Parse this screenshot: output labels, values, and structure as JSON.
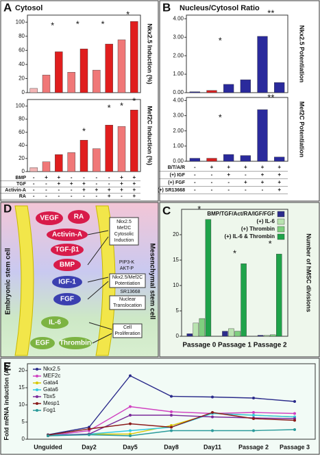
{
  "panels": [
    "A",
    "B",
    "C",
    "D",
    "E"
  ],
  "chart_data": [
    {
      "type": "bar",
      "title": "Cytosol",
      "y_label": "Nkx2.5 Induction (%)",
      "values": [
        6,
        25,
        58,
        29,
        62,
        32,
        69,
        75,
        101
      ],
      "colors": [
        "#f3b5b5",
        "#f07878",
        "#e01e1e",
        "#f07878",
        "#e01e1e",
        "#f07878",
        "#e01e1e",
        "#f07878",
        "#e01e1e"
      ],
      "ylim": [
        0,
        110
      ],
      "yticks": [
        0,
        20,
        40,
        60,
        80,
        100
      ],
      "annotations": [
        "*",
        "*",
        "*",
        "*"
      ]
    },
    {
      "type": "bar",
      "y_label": "Mef2C Induction (%)",
      "values": [
        6,
        15,
        26,
        29,
        48,
        35,
        71,
        69,
        94
      ],
      "colors": [
        "#f3b5b5",
        "#f07878",
        "#e01e1e",
        "#f07878",
        "#e01e1e",
        "#f07878",
        "#e01e1e",
        "#f07878",
        "#e01e1e"
      ],
      "ylim": [
        0,
        110
      ],
      "yticks": [
        0,
        20,
        40,
        60,
        80,
        100
      ],
      "annotations": [
        "*",
        "*",
        "*",
        "*"
      ],
      "conditions": [
        {
          "label": "BMP",
          "signs": [
            "-",
            "+",
            "+",
            "-",
            "-",
            "-",
            "-",
            "+",
            "+"
          ]
        },
        {
          "label": "TGF",
          "signs": [
            "-",
            "-",
            "+",
            "+",
            "+",
            "-",
            "-",
            "+",
            "+"
          ]
        },
        {
          "label": "Activin-A",
          "signs": [
            "-",
            "-",
            "-",
            "-",
            "+",
            "+",
            "+",
            "+",
            "+"
          ]
        },
        {
          "label": "RA",
          "signs": [
            "-",
            "-",
            "-",
            "-",
            "-",
            "-",
            "+",
            "-",
            "+"
          ]
        }
      ]
    },
    {
      "type": "bar",
      "title": "Nucleus/Cytosol Ratio",
      "y_label": "Nkx2.5 Potentiation",
      "values": [
        0.05,
        0.12,
        0.45,
        0.7,
        3.05,
        0.55
      ],
      "colors": [
        "#2a2a9c",
        "#d42020",
        "#2a2a9c",
        "#2a2a9c",
        "#2a2a9c",
        "#2a2a9c"
      ],
      "ylim": [
        0,
        4.2
      ],
      "yticks": [
        {
          "value": 0,
          "label": "0.00"
        },
        {
          "value": 1,
          "label": "1.00"
        },
        {
          "value": 2,
          "label": "2.00"
        },
        {
          "value": 3,
          "label": "3.00"
        },
        {
          "value": 4,
          "label": "4.00"
        }
      ],
      "annotations": [
        "*",
        "**"
      ]
    },
    {
      "type": "bar",
      "y_label": "Mef2C Potentiation",
      "values": [
        0.2,
        0.2,
        0.45,
        0.38,
        3.4,
        0.28
      ],
      "colors": [
        "#2a2a9c",
        "#d42020",
        "#2a2a9c",
        "#2a2a9c",
        "#2a2a9c",
        "#2a2a9c"
      ],
      "ylim": [
        0,
        4.2
      ],
      "yticks": [
        {
          "value": 0,
          "label": "0.00"
        },
        {
          "value": 1,
          "label": "1.00"
        },
        {
          "value": 2,
          "label": "2.00"
        },
        {
          "value": 3,
          "label": "3.00"
        },
        {
          "value": 4,
          "label": "4.00"
        }
      ],
      "annotations": [
        "*",
        "**"
      ],
      "conditions": [
        {
          "label": "B/T/A/R",
          "signs": [
            "-",
            "+",
            "+",
            "+",
            "+",
            "+"
          ]
        },
        {
          "label": "(+) IGF",
          "signs": [
            "-",
            "-",
            "+",
            "-",
            "+",
            "+"
          ]
        },
        {
          "label": "(+) FGF",
          "signs": [
            "-",
            "-",
            "-",
            "+",
            "+",
            "+"
          ]
        },
        {
          "label": "(+) SR13668",
          "signs": [
            "-",
            "-",
            "-",
            "-",
            "-",
            "+"
          ]
        }
      ]
    },
    {
      "type": "grouped_bar",
      "y_label": "Number of hMSC divisions",
      "categories": [
        "Passage 0",
        "Passage 1",
        "Passage 2"
      ],
      "series": [
        {
          "name": "BMP/TGF/Act/RA/IGF/FGF",
          "color": "#2c2c8c",
          "values": [
            0.5,
            1,
            0.2
          ]
        },
        {
          "name": "(+) IL-6",
          "color": "#b9e3b0",
          "values": [
            2.6,
            1.5,
            0.2
          ]
        },
        {
          "name": "(+) Thrombin",
          "color": "#7fcf7f",
          "values": [
            3.5,
            1,
            0.3
          ]
        },
        {
          "name": "(+) IL-6 & Thrombin",
          "color": "#1fa34a",
          "values": [
            23,
            14.3,
            16.2
          ]
        }
      ],
      "ylim": [
        0,
        25
      ],
      "yticks": [
        0,
        5,
        10,
        15,
        20
      ],
      "annotations": [
        "*",
        "*",
        "*"
      ]
    },
    {
      "type": "line",
      "y_label": "Fold mRNA induction (AU)",
      "categories": [
        "Unguided",
        "Day2",
        "Day5",
        "Day8",
        "Day11",
        "Passage 2",
        "Passage 3"
      ],
      "series": [
        {
          "name": "Nkx2.5",
          "color": "#2a2a8a",
          "values": [
            1.3,
            3.5,
            18.5,
            12.5,
            12.3,
            12,
            11
          ]
        },
        {
          "name": "MEF2c",
          "color": "#d040c0",
          "values": [
            1,
            2.5,
            9.5,
            8,
            7.5,
            7.8,
            7.5
          ]
        },
        {
          "name": "Gata4",
          "color": "#d8c800",
          "values": [
            1,
            1.5,
            1.5,
            4,
            7.5,
            7,
            6.5
          ]
        },
        {
          "name": "Gata6",
          "color": "#30c8e0",
          "values": [
            1.2,
            1.5,
            2.5,
            3.5,
            7.5,
            7,
            6.5
          ]
        },
        {
          "name": "Tbx5",
          "color": "#7a2a9a",
          "values": [
            1,
            1.5,
            7,
            7,
            6.5,
            6.2,
            6
          ]
        },
        {
          "name": "Mesp1",
          "color": "#8a1a1a",
          "values": [
            1.2,
            3,
            4.5,
            3.5,
            7.8,
            6,
            5.5
          ]
        },
        {
          "name": "Fog1",
          "color": "#2a9a9a",
          "values": [
            1,
            1.3,
            1,
            2.5,
            2.5,
            2.5,
            2.8
          ]
        }
      ],
      "ylim": [
        0,
        22
      ],
      "yticks": [
        0,
        5,
        10,
        15,
        20
      ]
    }
  ],
  "diagram": {
    "cells": [
      "Embryonic stem cell",
      "Mesenchymal stem cell"
    ],
    "ligands": [
      "VEGF",
      "RA",
      "Activin-A",
      "TGF-β1",
      "BMP",
      "IGF-1",
      "FGF",
      "IL-6",
      "EGF",
      "Thrombin"
    ],
    "induction": [
      "Nkx2.5",
      "Mef2C",
      "Cytosolic",
      "Induction"
    ],
    "pathway": [
      "PIP3-K",
      "AKT-P"
    ],
    "potentiation": [
      "Nkx2.5/Mef2C",
      "Potentiation"
    ],
    "inhibitor": "SR13668",
    "translocation": [
      "Nuclear",
      "Translocation"
    ],
    "proliferation": [
      "Cell",
      "Proliferation"
    ]
  }
}
